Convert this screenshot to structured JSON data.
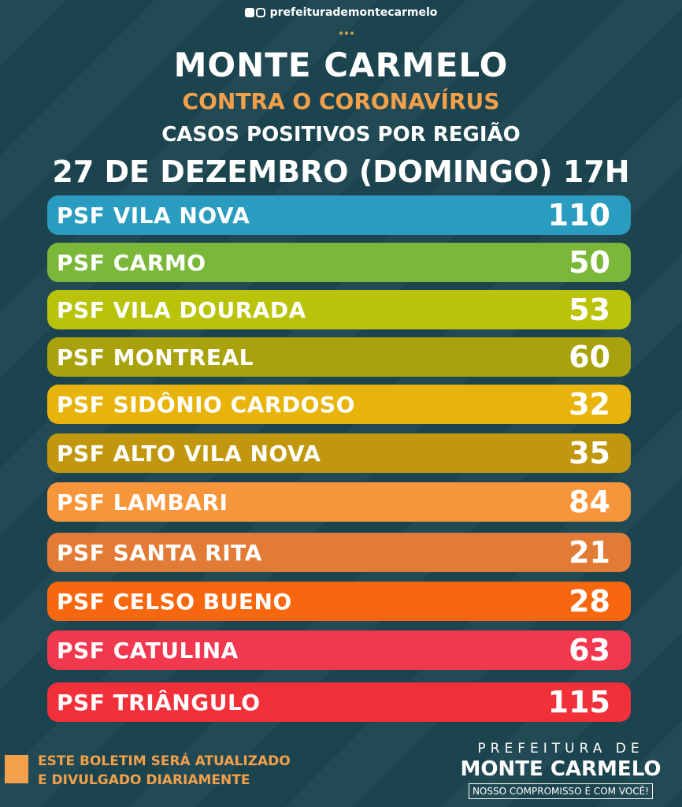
{
  "header": {
    "social_handle": "prefeiturademontecarmelo",
    "title": "MONTE CARMELO",
    "subtitle": "CONTRA O CORONAVÍRUS",
    "heading": "CASOS POSITIVOS POR REGIÃO",
    "date": "27 DE DEZEMBRO (DOMINGO) 17H"
  },
  "regions": [
    {
      "name": "PSF VILA NOVA",
      "count": "110",
      "color": "#2a9cc0"
    },
    {
      "name": "PSF CARMO",
      "count": "50",
      "color": "#7bb83a"
    },
    {
      "name": "PSF VILA DOURADA",
      "count": "53",
      "color": "#b9c30a"
    },
    {
      "name": "PSF MONTREAL",
      "count": "60",
      "color": "#a8a20c"
    },
    {
      "name": "PSF SIDÔNIO CARDOSO",
      "count": "32",
      "color": "#e8b40c"
    },
    {
      "name": "PSF ALTO VILA NOVA",
      "count": "35",
      "color": "#c1970f"
    },
    {
      "name": "PSF LAMBARI",
      "count": "84",
      "color": "#f7953a"
    },
    {
      "name": "PSF SANTA RITA",
      "count": "21",
      "color": "#e27b36"
    },
    {
      "name": "PSF CELSO BUENO",
      "count": "28",
      "color": "#f7670f"
    },
    {
      "name": "PSF CATULINA",
      "count": "63",
      "color": "#f2384f"
    },
    {
      "name": "PSF TRIÂNGULO",
      "count": "115",
      "color": "#f2303a"
    }
  ],
  "footer": {
    "note_line1": "ESTE BOLETIM SERÁ ATUALIZADO",
    "note_line2": "E DIVULGADO DIARIAMENTE",
    "logo_line1": "PREFEITURA DE",
    "logo_line2": "MONTE CARMELO",
    "logo_line3": "NOSSO COMPROMISSO É COM VOCÊ!"
  }
}
